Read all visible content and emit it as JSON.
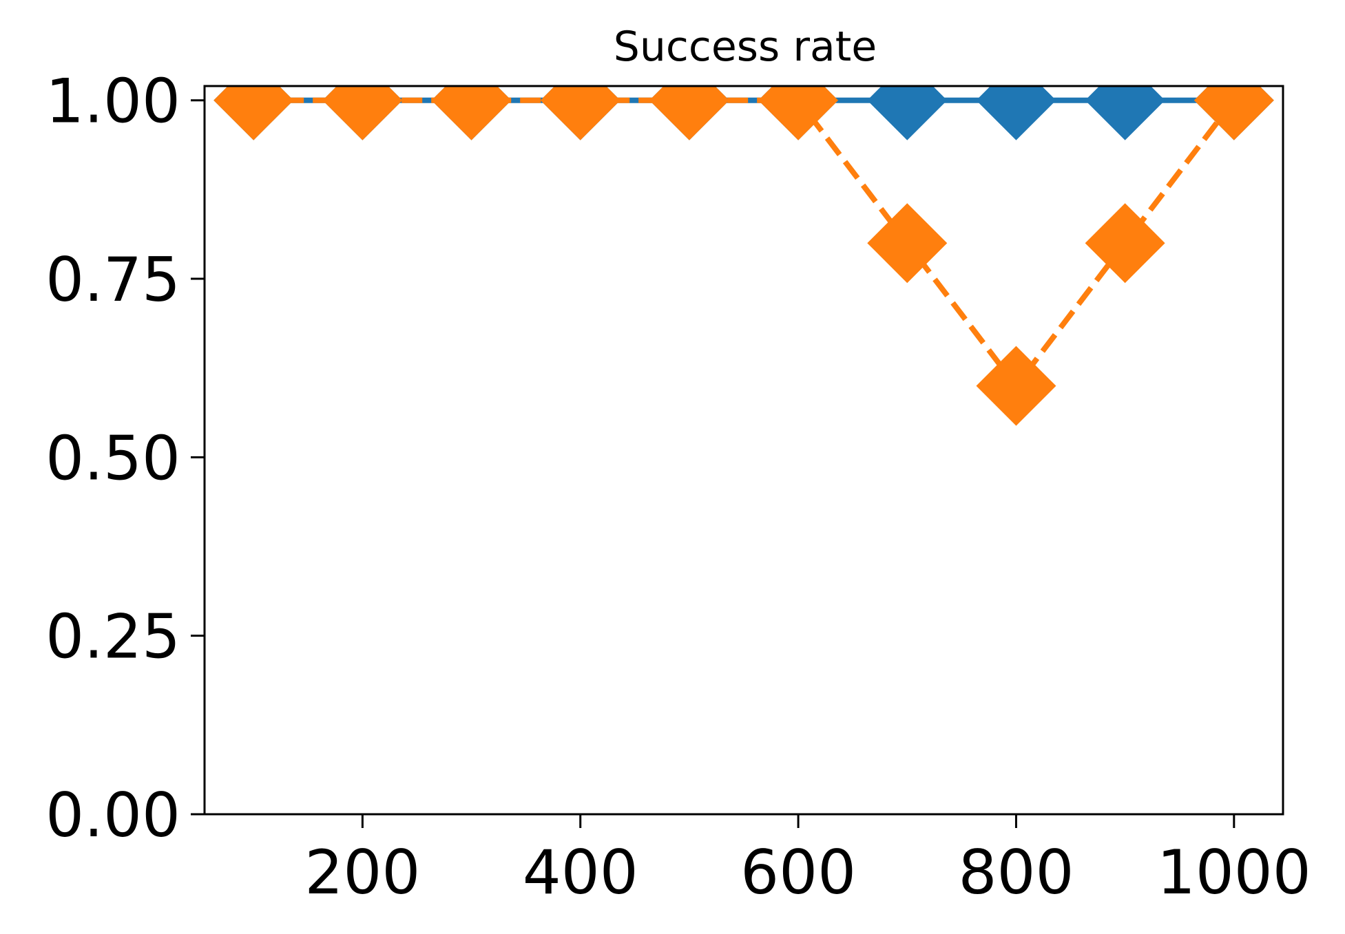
{
  "chart_data": {
    "type": "line",
    "title": "Success rate",
    "xlabel": "",
    "ylabel": "",
    "xlim": [
      55,
      1045
    ],
    "ylim": [
      0,
      1.02
    ],
    "x_ticks": [
      200,
      400,
      600,
      800,
      1000
    ],
    "x_tick_labels": [
      "200",
      "400",
      "600",
      "800",
      "1000"
    ],
    "y_ticks": [
      0,
      0.25,
      0.5,
      0.75,
      1.0
    ],
    "y_tick_labels": [
      "0.00",
      "0.25",
      "0.50",
      "0.75",
      "1.00"
    ],
    "grid": false,
    "x": [
      100,
      200,
      300,
      400,
      500,
      600,
      700,
      800,
      900,
      1000
    ],
    "series": [
      {
        "name": "series-1",
        "color": "#1f77b4",
        "line_style": "solid",
        "marker": "diamond",
        "values": [
          1.0,
          1.0,
          1.0,
          1.0,
          1.0,
          1.0,
          1.0,
          1.0,
          1.0,
          1.0
        ]
      },
      {
        "name": "series-2",
        "color": "#ff7f0e",
        "line_style": "dashed",
        "marker": "diamond",
        "values": [
          1.0,
          1.0,
          1.0,
          1.0,
          1.0,
          1.0,
          0.8,
          0.6,
          0.8,
          1.0
        ]
      }
    ]
  }
}
